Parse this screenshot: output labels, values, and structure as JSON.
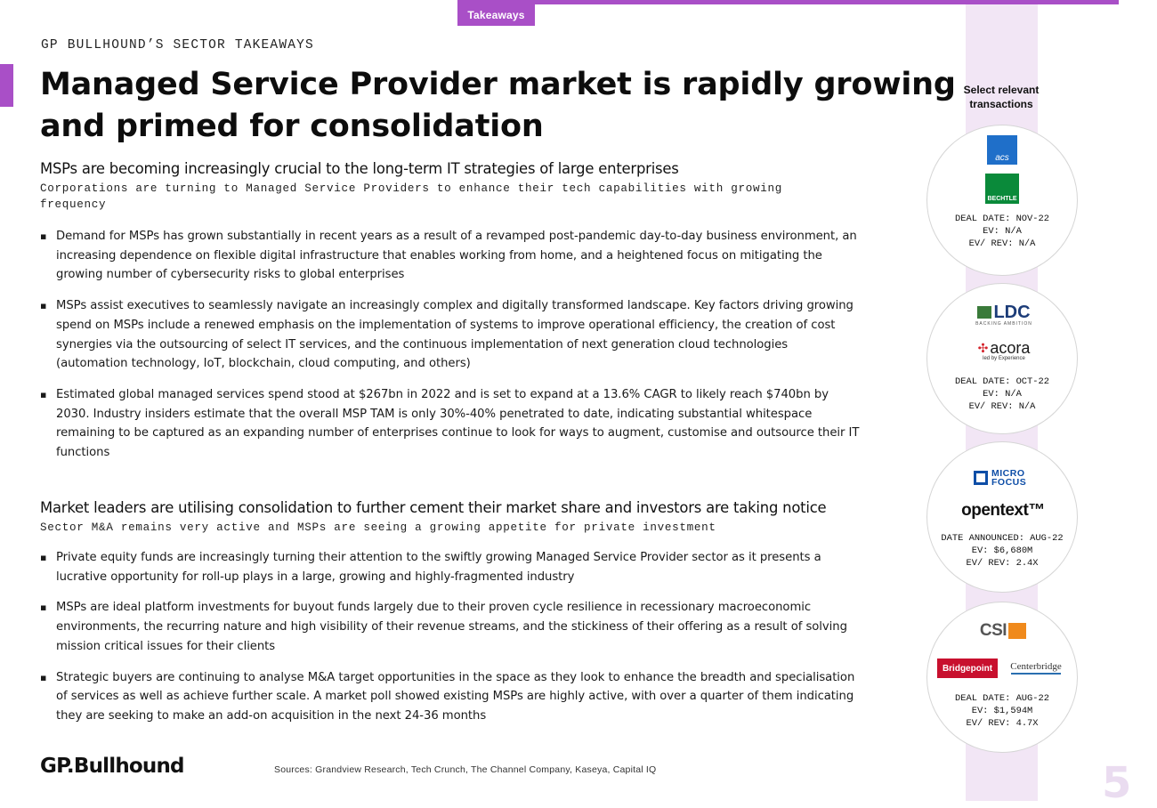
{
  "header": {
    "tag": "Takeaways",
    "kicker": "GP BULLHOUND’S SECTOR TAKEAWAYS",
    "title": "Managed Service Provider market is rapidly growing and primed for consolidation"
  },
  "sections": [
    {
      "heading": "MSPs are becoming increasingly crucial to the long-term IT strategies of large enterprises",
      "subheading": "Corporations are turning to Managed Service Providers to enhance their tech capabilities with growing frequency",
      "bullets": [
        "Demand for MSPs has grown substantially in recent years as a result of a revamped post-pandemic day-to-day business environment, an increasing dependence on flexible digital infrastructure that enables working from home, and a heightened focus on mitigating the growing number of cybersecurity risks to global enterprises",
        "MSPs assist executives to seamlessly navigate an increasingly complex and digitally transformed landscape. Key factors driving growing spend on MSPs include a renewed emphasis on the implementation of systems to improve operational efficiency, the creation of cost synergies via the outsourcing of select IT services, and the continuous implementation of next generation cloud technologies (automation technology, IoT, blockchain, cloud computing, and others)",
        "Estimated global managed services spend stood at $267bn in 2022 and is set to expand at a 13.6% CAGR to likely reach $740bn by 2030. Industry insiders estimate that the overall MSP TAM is only 30%-40% penetrated to date, indicating substantial whitespace remaining to be captured as an expanding number of enterprises continue to look for ways to augment, customise and outsource their IT functions"
      ]
    },
    {
      "heading": "Market leaders are utilising consolidation to further cement their market share and investors are taking notice",
      "subheading": "Sector M&A remains very active and MSPs are seeing a growing appetite for private investment",
      "bullets": [
        "Private equity funds are increasingly turning their attention to the swiftly growing Managed Service Provider sector as it presents a lucrative opportunity for roll-up plays in a large, growing and highly-fragmented industry",
        "MSPs are ideal platform investments for buyout funds largely due to their proven cycle resilience in recessionary macroeconomic environments, the recurring nature and high visibility of their revenue streams, and the stickiness of their offering as a result of solving mission critical issues for their clients",
        "Strategic buyers are continuing to analyse M&A target opportunities in the space as they look to enhance the breadth and specialisation of services as well as achieve further scale. A market poll showed existing MSPs are highly active, with over a quarter of them indicating they are seeking to make an add-on acquisition in the next 24-36 months"
      ]
    }
  ],
  "panel": {
    "label": "Select relevant transactions",
    "deals": [
      {
        "logo_top": "acs",
        "logo_bottom": "BECHTLE",
        "line1": "DEAL DATE: NOV-22",
        "line2": "EV: N/A",
        "line3": "EV/ REV: N/A"
      },
      {
        "logo_top": "LDC",
        "logo_top_sub": "BACKING AMBITION",
        "logo_bottom": "acora",
        "logo_bottom_sub": "led by Experience",
        "line1": "DEAL DATE: OCT-22",
        "line2": "EV: N/A",
        "line3": "EV/ REV: N/A"
      },
      {
        "logo_top": "MICRO FOCUS",
        "logo_bottom": "opentext™",
        "line1": "DATE ANNOUNCED: AUG-22",
        "line2": "EV: $6,680M",
        "line3": "EV/ REV: 2.4X"
      },
      {
        "logo_top": "CSI",
        "logo_bottom": "Bridgepoint",
        "logo_bottom2": "Centerbridge",
        "line1": "DEAL DATE: AUG-22",
        "line2": "EV: $1,594M",
        "line3": "EV/ REV: 4.7X"
      }
    ]
  },
  "footer": {
    "logo": "GP.Bullhound",
    "sources": "Sources: Grandview Research, Tech Crunch, The Channel Company, Kaseya, Capital IQ",
    "page_number": "5"
  },
  "colors": {
    "accent": "#a94fc7",
    "panel_bg": "#f2e6f5",
    "acs_blue": "#1f6fc9",
    "bechtle_green": "#0a8a3a",
    "ldc_navy": "#1c3c78",
    "acora_red": "#d4242c",
    "microfocus_blue": "#0e4ea7",
    "csi_orange": "#f08a1c",
    "bridgepoint_red": "#c8102e"
  }
}
